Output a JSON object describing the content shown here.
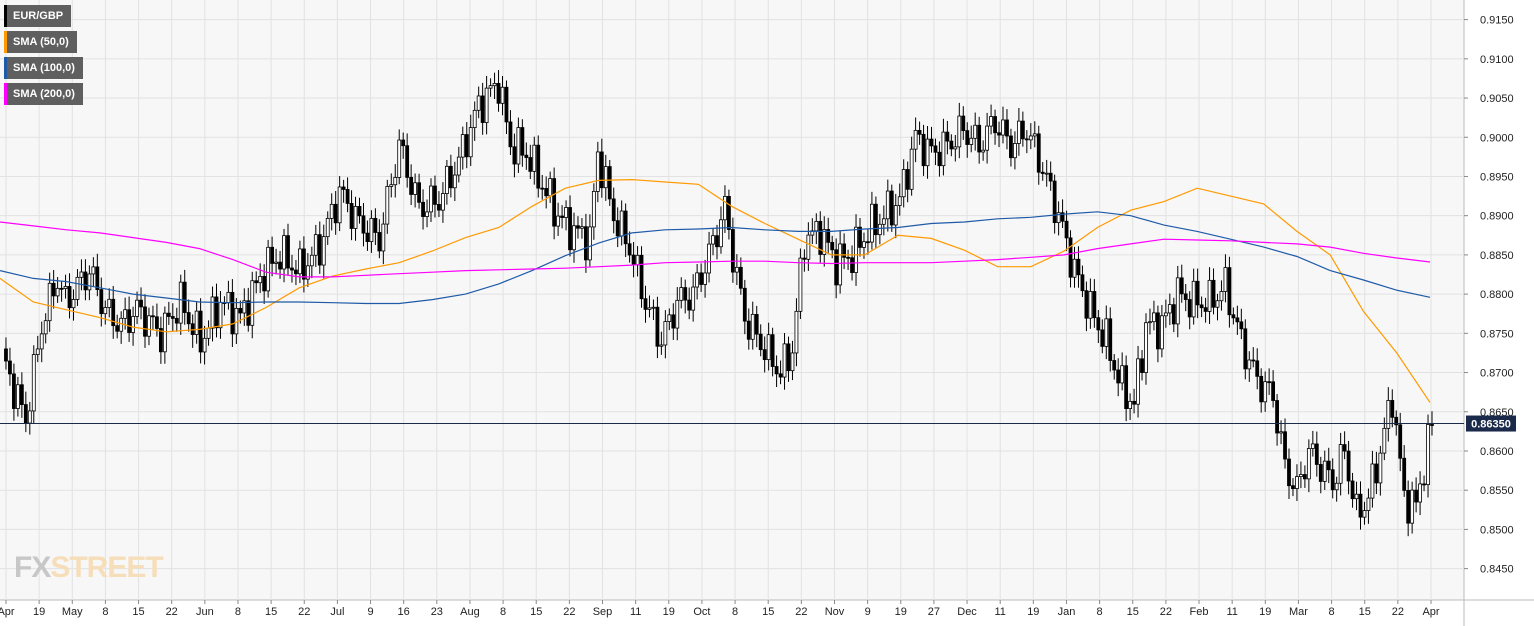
{
  "chart_data": {
    "type": "candlestick",
    "instrument": "EUR/GBP",
    "timeframe": "daily",
    "current_price": "0.86350",
    "ylim": [
      0.841,
      0.9175
    ],
    "y_ticks": [
      "0.9150",
      "0.9100",
      "0.9050",
      "0.9000",
      "0.8950",
      "0.8900",
      "0.8850",
      "0.8800",
      "0.8750",
      "0.8700",
      "0.8650",
      "0.8600",
      "0.8550",
      "0.8500",
      "0.8450"
    ],
    "x_ticks": [
      "Apr",
      "19",
      "May",
      "8",
      "15",
      "22",
      "Jun",
      "8",
      "15",
      "22",
      "Jul",
      "9",
      "16",
      "23",
      "Aug",
      "8",
      "15",
      "22",
      "Sep",
      "11",
      "19",
      "Oct",
      "8",
      "15",
      "22",
      "Nov",
      "9",
      "19",
      "27",
      "Dec",
      "11",
      "19",
      "Jan",
      "8",
      "15",
      "22",
      "Feb",
      "11",
      "19",
      "Mar",
      "8",
      "15",
      "22",
      "Apr"
    ],
    "grid": true,
    "legend": {
      "position": "top-left",
      "items": [
        {
          "label": "EUR/GBP",
          "color": "#000000"
        },
        {
          "label": "SMA (50,0)",
          "color": "#ff9a00"
        },
        {
          "label": "SMA (100,0)",
          "color": "#1e5aa8"
        },
        {
          "label": "SMA (200,0)",
          "color": "#ff00ff"
        }
      ]
    },
    "series": [
      {
        "name": "SMA (50,0)",
        "color": "#ff9a00",
        "values": [
          0.882,
          0.879,
          0.878,
          0.877,
          0.8758,
          0.8752,
          0.8755,
          0.8762,
          0.8783,
          0.8808,
          0.8823,
          0.8832,
          0.884,
          0.8855,
          0.8872,
          0.8885,
          0.8912,
          0.8935,
          0.8945,
          0.8946,
          0.8943,
          0.894,
          0.8912,
          0.889,
          0.887,
          0.885,
          0.885,
          0.8875,
          0.8871,
          0.8856,
          0.8835,
          0.8835,
          0.8855,
          0.8885,
          0.8907,
          0.8918,
          0.8935,
          0.8925,
          0.8915,
          0.888,
          0.885,
          0.8778,
          0.8725,
          0.8662
        ]
      },
      {
        "name": "SMA (100,0)",
        "color": "#1e5aa8",
        "values": [
          0.883,
          0.882,
          0.8816,
          0.8808,
          0.88,
          0.8795,
          0.879,
          0.8789,
          0.879,
          0.879,
          0.8789,
          0.8788,
          0.8788,
          0.8793,
          0.88,
          0.8813,
          0.883,
          0.8849,
          0.8865,
          0.8878,
          0.8882,
          0.8883,
          0.8885,
          0.8882,
          0.888,
          0.888,
          0.8883,
          0.8885,
          0.889,
          0.8892,
          0.8896,
          0.8898,
          0.8902,
          0.8905,
          0.89,
          0.8888,
          0.888,
          0.887,
          0.886,
          0.8848,
          0.883,
          0.8818,
          0.8805,
          0.8796
        ]
      },
      {
        "name": "SMA (200,0)",
        "color": "#ff00ff",
        "values": [
          0.8892,
          0.8887,
          0.8882,
          0.8878,
          0.8872,
          0.8866,
          0.8858,
          0.8844,
          0.8828,
          0.8822,
          0.8822,
          0.8824,
          0.8826,
          0.8828,
          0.883,
          0.8831,
          0.8832,
          0.8833,
          0.8835,
          0.8837,
          0.884,
          0.8841,
          0.8842,
          0.8842,
          0.884,
          0.8839,
          0.884,
          0.884,
          0.884,
          0.8842,
          0.8844,
          0.8847,
          0.885,
          0.8858,
          0.8864,
          0.887,
          0.8869,
          0.8868,
          0.8866,
          0.8864,
          0.886,
          0.8852,
          0.8846,
          0.8841
        ]
      }
    ]
  },
  "watermark": {
    "part1": "FX",
    "part2": "STREET"
  }
}
